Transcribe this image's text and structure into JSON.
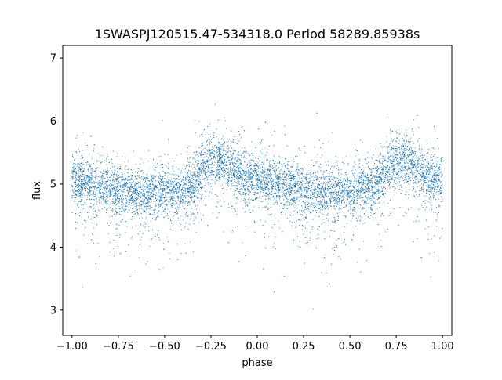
{
  "chart_data": {
    "type": "scatter",
    "title": "1SWASPJ120515.47-534318.0 Period 58289.85938s",
    "xlabel": "phase",
    "ylabel": "flux",
    "xlim": [
      -1.05,
      1.05
    ],
    "ylim": [
      2.6,
      7.2
    ],
    "x_ticks": [
      -1.0,
      -0.75,
      -0.5,
      -0.25,
      0.0,
      0.25,
      0.5,
      0.75,
      1.0
    ],
    "x_tick_labels": [
      "−1.00",
      "−0.75",
      "−0.50",
      "−0.25",
      "0.00",
      "0.25",
      "0.50",
      "0.75",
      "1.00"
    ],
    "y_ticks": [
      3,
      4,
      5,
      6,
      7
    ],
    "y_tick_labels": [
      "3",
      "4",
      "5",
      "6",
      "7"
    ],
    "grid": false,
    "legend": "none",
    "marker_color": "#1f77b4",
    "series": [
      {
        "phase_range": [
          -1.0,
          1.0
        ],
        "folded_period": 1.0,
        "point_count": 14000,
        "mean_flux_profile": {
          "phase": [
            -1.0,
            -0.9,
            -0.8,
            -0.7,
            -0.6,
            -0.5,
            -0.4,
            -0.35,
            -0.3,
            -0.25,
            -0.2,
            -0.15,
            -0.1,
            -0.05,
            0.0,
            0.1,
            0.2,
            0.3,
            0.4,
            0.5,
            0.6,
            0.65,
            0.7,
            0.75,
            0.8,
            0.85,
            0.9,
            0.95,
            1.0
          ],
          "flux": [
            5.05,
            5.0,
            4.92,
            4.88,
            4.85,
            4.85,
            4.9,
            5.0,
            5.2,
            5.35,
            5.38,
            5.28,
            5.15,
            5.08,
            5.05,
            5.0,
            4.92,
            4.88,
            4.85,
            4.85,
            4.9,
            5.0,
            5.2,
            5.35,
            5.38,
            5.28,
            5.15,
            5.08,
            5.05
          ]
        },
        "core_scatter_sigma": 0.18,
        "outlier_fraction": 0.25,
        "outlier_flux_range": [
          2.8,
          7.0
        ]
      }
    ]
  }
}
